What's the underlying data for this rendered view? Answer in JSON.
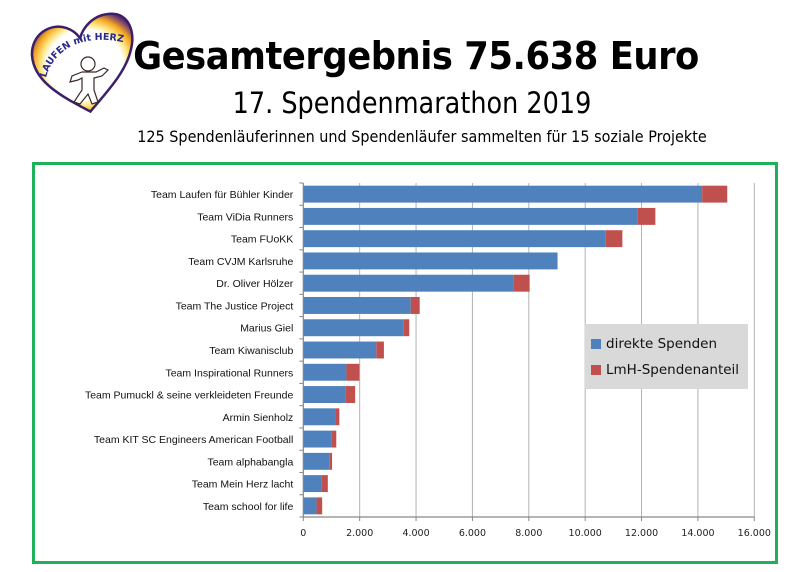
{
  "header": {
    "logo_text": "LAUFEN mit HERZ",
    "title": "Gesamtergebnis 75.638 Euro",
    "subtitle": "17. Spendenmarathon 2019",
    "description": "125 Spendenläuferinnen und Spendenläufer sammelten für 15 soziale Projekte"
  },
  "colors": {
    "frame": "#1fb15a",
    "direct": "#4f81bd",
    "lmh": "#c0504d",
    "legend_bg": "#d9d9d9",
    "grid": "#b3b3b3"
  },
  "chart_data": {
    "type": "bar",
    "orientation": "horizontal",
    "stacked": true,
    "title": "",
    "xlabel": "",
    "ylabel": "",
    "xlim": [
      0,
      16000
    ],
    "x_ticks": [
      0,
      2000,
      4000,
      6000,
      8000,
      10000,
      12000,
      14000,
      16000
    ],
    "x_tick_labels": [
      "0",
      "2.000",
      "4.000",
      "6.000",
      "8.000",
      "10.000",
      "12.000",
      "14.000",
      "16.000"
    ],
    "grid": "vertical",
    "legend_position": "right",
    "categories": [
      "Team Laufen für Bühler Kinder",
      "Team ViDia Runners",
      "Team FUoKK",
      "Team CVJM Karlsruhe",
      "Dr. Oliver Hölzer",
      "Team The Justice Project",
      "Marius Giel",
      "Team Kiwanisclub",
      "Team Inspirational Runners",
      "Team Pumuckl & seine verkleideten Freunde",
      "Armin Sienholz",
      "Team KIT SC Engineers American Football",
      "Team alphabangla",
      "Team Mein Herz lacht",
      "Team school for life"
    ],
    "series": [
      {
        "name": "direkte Spenden",
        "color": "#4f81bd",
        "values": [
          14150,
          11860,
          10730,
          9020,
          7450,
          3810,
          3560,
          2590,
          1530,
          1490,
          1140,
          990,
          940,
          660,
          470
        ]
      },
      {
        "name": "LmH-Spendenanteil",
        "color": "#c0504d",
        "values": [
          890,
          630,
          590,
          0,
          580,
          320,
          200,
          270,
          460,
          350,
          140,
          180,
          80,
          210,
          200
        ]
      }
    ]
  }
}
